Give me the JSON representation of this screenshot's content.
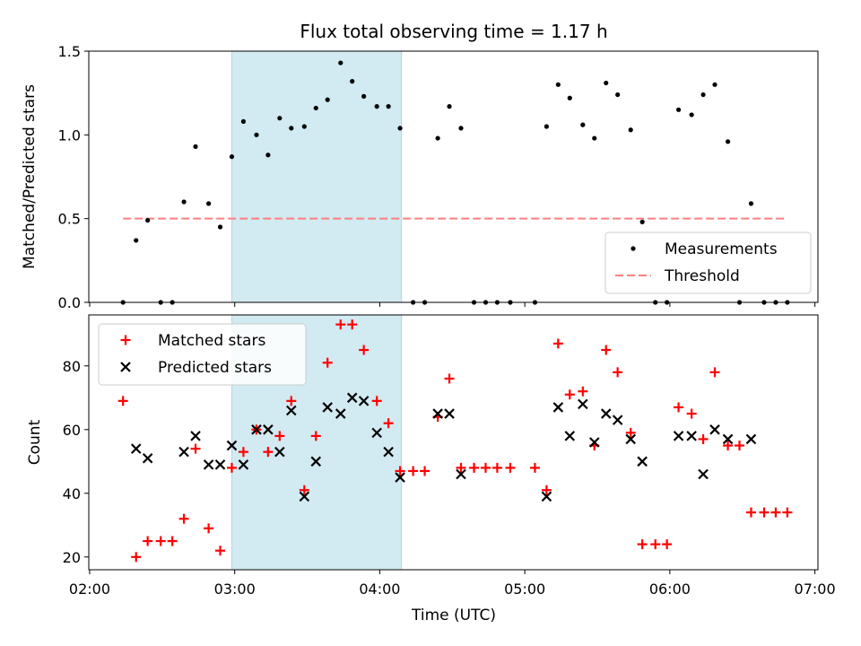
{
  "chart_data": {
    "type": "scatter",
    "title": "Flux total observing time = 1.17 h",
    "xlabel": "Time (UTC)",
    "x_tick_labels": [
      "02:00",
      "03:00",
      "04:00",
      "05:00",
      "06:00",
      "07:00"
    ],
    "x_tick_hours": [
      2,
      3,
      4,
      5,
      6,
      7
    ],
    "xlim_hours": [
      1.994,
      7.021
    ],
    "highlight_span_hours": [
      2.98,
      4.15
    ],
    "colors": {
      "measurements": "#000000",
      "threshold": "#ff7f7f",
      "matched": "#ff0000",
      "predicted": "#000000",
      "span": "#add8e6"
    },
    "top_panel": {
      "ylabel": "Matched/Predicted stars",
      "ylim": [
        0,
        1.5
      ],
      "y_ticks": [
        "0.0",
        "0.5",
        "1.0",
        "1.5"
      ],
      "legend_position": "bottom-right",
      "series": [
        {
          "name": "Measurements",
          "marker": "dot",
          "x": [
            2.23,
            2.32,
            2.4,
            2.49,
            2.57,
            2.65,
            2.73,
            2.82,
            2.9,
            2.98,
            3.06,
            3.15,
            3.23,
            3.31,
            3.39,
            3.48,
            3.56,
            3.64,
            3.73,
            3.81,
            3.89,
            3.98,
            4.06,
            4.14,
            4.23,
            4.31,
            4.4,
            4.48,
            4.56,
            4.65,
            4.73,
            4.81,
            4.9,
            5.07,
            5.15,
            5.23,
            5.31,
            5.4,
            5.48,
            5.56,
            5.64,
            5.73,
            5.81,
            5.9,
            5.98,
            6.06,
            6.15,
            6.23,
            6.31,
            6.4,
            6.48,
            6.56,
            6.65,
            6.73,
            6.81
          ],
          "y": [
            0.0,
            0.37,
            0.49,
            0.0,
            0.0,
            0.6,
            0.93,
            0.59,
            0.45,
            0.87,
            1.08,
            1.0,
            0.88,
            1.1,
            1.04,
            1.05,
            1.16,
            1.21,
            1.43,
            1.32,
            1.23,
            1.17,
            1.17,
            1.04,
            0.0,
            0.0,
            0.98,
            1.17,
            1.04,
            0.0,
            0.0,
            0.0,
            0.0,
            0.0,
            1.05,
            1.3,
            1.22,
            1.06,
            0.98,
            1.31,
            1.24,
            1.03,
            0.48,
            0.0,
            0.0,
            1.15,
            1.12,
            1.24,
            1.3,
            0.96,
            0.0,
            0.59,
            0.0,
            0.0,
            0.0
          ]
        },
        {
          "name": "Threshold",
          "marker": "dashed-line",
          "x": [
            2.23,
            6.81
          ],
          "y": [
            0.5,
            0.5
          ]
        }
      ]
    },
    "bottom_panel": {
      "ylabel": "Count",
      "ylim": [
        16,
        96
      ],
      "y_ticks": [
        "20",
        "40",
        "60",
        "80"
      ],
      "y_tick_values": [
        20,
        40,
        60,
        80
      ],
      "legend_position": "top-left",
      "series": [
        {
          "name": "Matched stars",
          "marker": "plus",
          "x": [
            2.23,
            2.32,
            2.4,
            2.49,
            2.57,
            2.65,
            2.73,
            2.82,
            2.9,
            2.98,
            3.06,
            3.15,
            3.23,
            3.31,
            3.39,
            3.48,
            3.56,
            3.64,
            3.73,
            3.81,
            3.89,
            3.98,
            4.06,
            4.14,
            4.23,
            4.31,
            4.4,
            4.48,
            4.56,
            4.65,
            4.73,
            4.81,
            4.9,
            5.07,
            5.15,
            5.23,
            5.31,
            5.4,
            5.48,
            5.56,
            5.64,
            5.73,
            5.81,
            5.9,
            5.98,
            6.06,
            6.15,
            6.23,
            6.31,
            6.4,
            6.48,
            6.56,
            6.65,
            6.73,
            6.81
          ],
          "y": [
            69,
            20,
            25,
            25,
            25,
            32,
            54,
            29,
            22,
            48,
            53,
            60,
            53,
            58,
            69,
            41,
            58,
            81,
            93,
            93,
            85,
            69,
            62,
            47,
            47,
            47,
            64,
            76,
            48,
            48,
            48,
            48,
            48,
            48,
            41,
            87,
            71,
            72,
            55,
            85,
            78,
            59,
            24,
            24,
            24,
            67,
            65,
            57,
            78,
            55,
            55,
            34,
            34,
            34,
            34
          ]
        },
        {
          "name": "Predicted stars",
          "marker": "x",
          "x": [
            2.32,
            2.4,
            2.65,
            2.73,
            2.82,
            2.9,
            2.98,
            3.06,
            3.15,
            3.23,
            3.31,
            3.39,
            3.48,
            3.56,
            3.64,
            3.73,
            3.81,
            3.89,
            3.98,
            4.06,
            4.14,
            4.4,
            4.48,
            4.56,
            5.15,
            5.23,
            5.31,
            5.4,
            5.48,
            5.56,
            5.64,
            5.73,
            5.81,
            6.06,
            6.15,
            6.23,
            6.31,
            6.4,
            6.56
          ],
          "y": [
            54,
            51,
            53,
            58,
            49,
            49,
            55,
            49,
            60,
            60,
            53,
            66,
            39,
            50,
            67,
            65,
            70,
            69,
            59,
            53,
            45,
            65,
            65,
            46,
            39,
            67,
            58,
            68,
            56,
            65,
            63,
            57,
            50,
            58,
            58,
            46,
            60,
            57,
            57
          ]
        }
      ]
    }
  }
}
